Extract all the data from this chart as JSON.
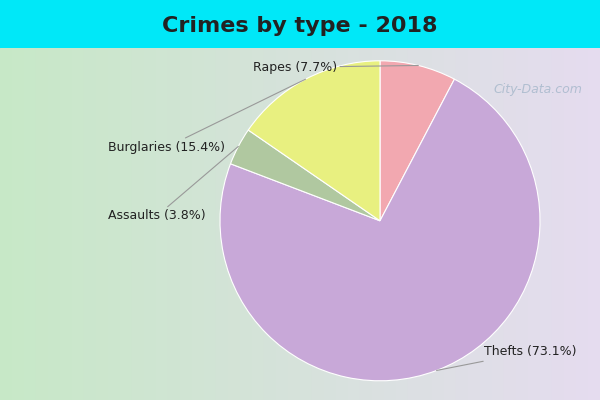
{
  "title": "Crimes by type - 2018",
  "slices_ordered": [
    {
      "label": "Rapes (7.7%)",
      "value": 7.7,
      "color": "#f2a8b0"
    },
    {
      "label": "Thefts (73.1%)",
      "value": 73.1,
      "color": "#c8a8d8"
    },
    {
      "label": "Assaults (3.8%)",
      "value": 3.8,
      "color": "#b0c8a0"
    },
    {
      "label": "Burglaries (15.4%)",
      "value": 15.4,
      "color": "#e8f080"
    }
  ],
  "bg_cyan": "#00e8f8",
  "bg_inner_left": "#c8e8c8",
  "bg_inner_right": "#dce8f0",
  "title_fontsize": 16,
  "title_color": "#222222",
  "label_fontsize": 9,
  "label_color": "#222222",
  "watermark": "City-Data.com",
  "fig_width": 6.0,
  "fig_height": 4.0
}
